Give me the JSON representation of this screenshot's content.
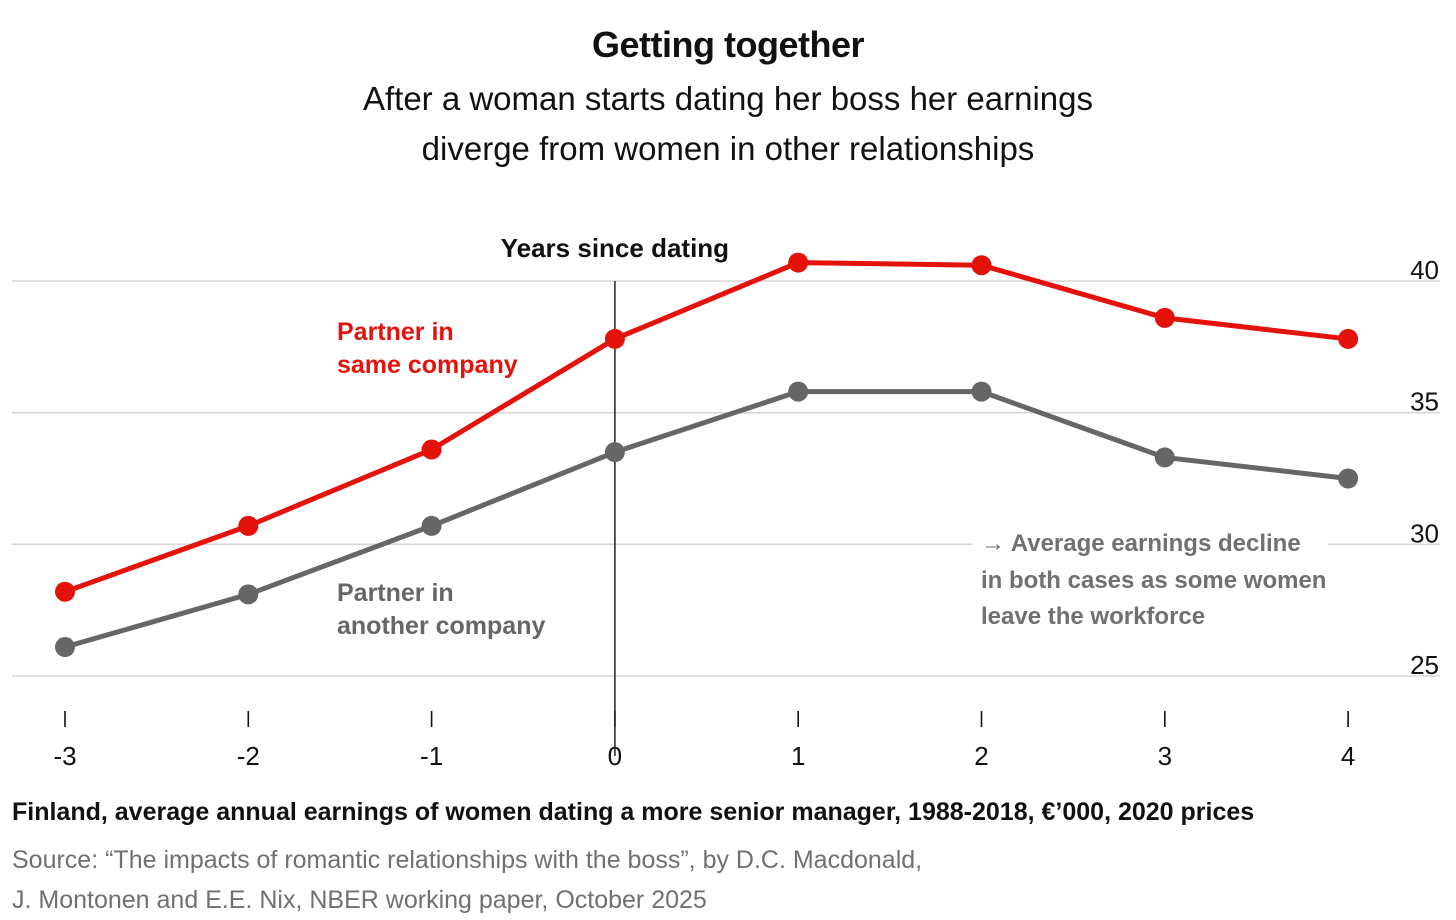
{
  "header": {
    "title": "Getting together",
    "subtitle_lines": [
      "After a woman starts dating her boss her earnings",
      "diverge from women in other relationships"
    ]
  },
  "chart_data": {
    "type": "line",
    "x": [
      -3,
      -2,
      -1,
      0,
      1,
      2,
      3,
      4
    ],
    "x_tick_labels": [
      "-3",
      "-2",
      "-1",
      "0",
      "1",
      "2",
      "3",
      "4"
    ],
    "y_tick_values": [
      25,
      30,
      35,
      40
    ],
    "y_tick_labels": [
      "25",
      "30",
      "35",
      "40"
    ],
    "ylim": [
      25,
      40
    ],
    "y_axis_side": "right",
    "grid": true,
    "series": [
      {
        "name_lines": [
          "Partner in",
          "same company"
        ],
        "color": "#e3120b",
        "values": [
          28.2,
          30.7,
          33.6,
          37.8,
          40.7,
          40.6,
          38.6,
          37.8
        ]
      },
      {
        "name_lines": [
          "Partner in",
          "another company"
        ],
        "color": "#666666",
        "values": [
          26.1,
          28.1,
          30.7,
          33.5,
          35.8,
          35.8,
          33.3,
          32.5
        ]
      }
    ],
    "reference_line": {
      "x": 0,
      "label": "Years since dating"
    },
    "annotation_lines": [
      "→ Average earnings decline",
      "in both cases as some women",
      "leave the workforce"
    ]
  },
  "footer": {
    "description": "Finland, average annual earnings of women dating a more senior manager, 1988-2018, €’000, 2020 prices",
    "source_lines": [
      "Source: “The impacts of romantic relationships with the boss”, by D.C. Macdonald,",
      "J. Montonen and E.E. Nix, NBER working paper, October 2025"
    ]
  }
}
